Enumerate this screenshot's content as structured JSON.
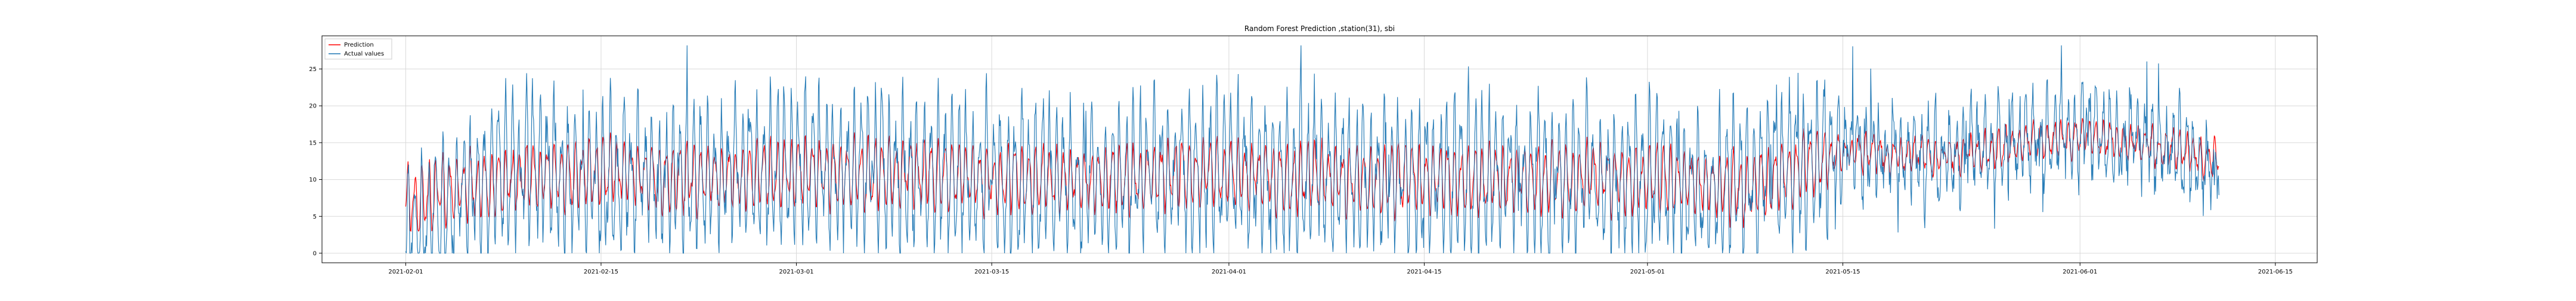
{
  "chart_data": {
    "type": "line",
    "title": "Random Forest Prediction ,station(31), sbi",
    "xlabel": "",
    "ylabel": "",
    "x_ticks": [
      "2021-02-01",
      "2021-02-15",
      "2021-03-01",
      "2021-03-15",
      "2021-04-01",
      "2021-04-15",
      "2021-05-01",
      "2021-05-15",
      "2021-06-01",
      "2021-06-15"
    ],
    "y_ticks": [
      0,
      5,
      10,
      15,
      20,
      25
    ],
    "xlim": [
      "2021-01-26",
      "2021-06-18"
    ],
    "ylim": [
      -1.3,
      29.5
    ],
    "grid": true,
    "legend_position": "top-left",
    "data_range": [
      "2021-02-01",
      "2021-06-11"
    ],
    "series": [
      {
        "name": "Prediction",
        "color": "#ff0000",
        "x": [
          "2021-02-01",
          "2021-02-08",
          "2021-02-15",
          "2021-02-22",
          "2021-03-01",
          "2021-03-08",
          "2021-03-15",
          "2021-03-22",
          "2021-04-01",
          "2021-04-08",
          "2021-04-15",
          "2021-04-22",
          "2021-05-01",
          "2021-05-08",
          "2021-05-15",
          "2021-05-22",
          "2021-06-01",
          "2021-06-08",
          "2021-06-11"
        ],
        "values": [
          7,
          10,
          11,
          10,
          11,
          11,
          10,
          10,
          11,
          10,
          10,
          10,
          10,
          9,
          14,
          13,
          16,
          14,
          12
        ]
      },
      {
        "name": "Actual values",
        "color": "#1f77b4",
        "x": [
          "2021-02-01",
          "2021-02-08",
          "2021-02-15",
          "2021-02-22",
          "2021-03-01",
          "2021-03-08",
          "2021-03-15",
          "2021-03-22",
          "2021-04-01",
          "2021-04-08",
          "2021-04-15",
          "2021-04-22",
          "2021-05-01",
          "2021-05-08",
          "2021-05-15",
          "2021-05-22",
          "2021-06-01",
          "2021-06-08",
          "2021-06-11"
        ],
        "values": [
          2,
          12,
          10,
          11,
          12,
          11,
          10,
          10,
          11,
          10,
          10,
          10,
          10,
          9,
          14,
          13,
          17,
          14,
          11
        ]
      }
    ]
  }
}
